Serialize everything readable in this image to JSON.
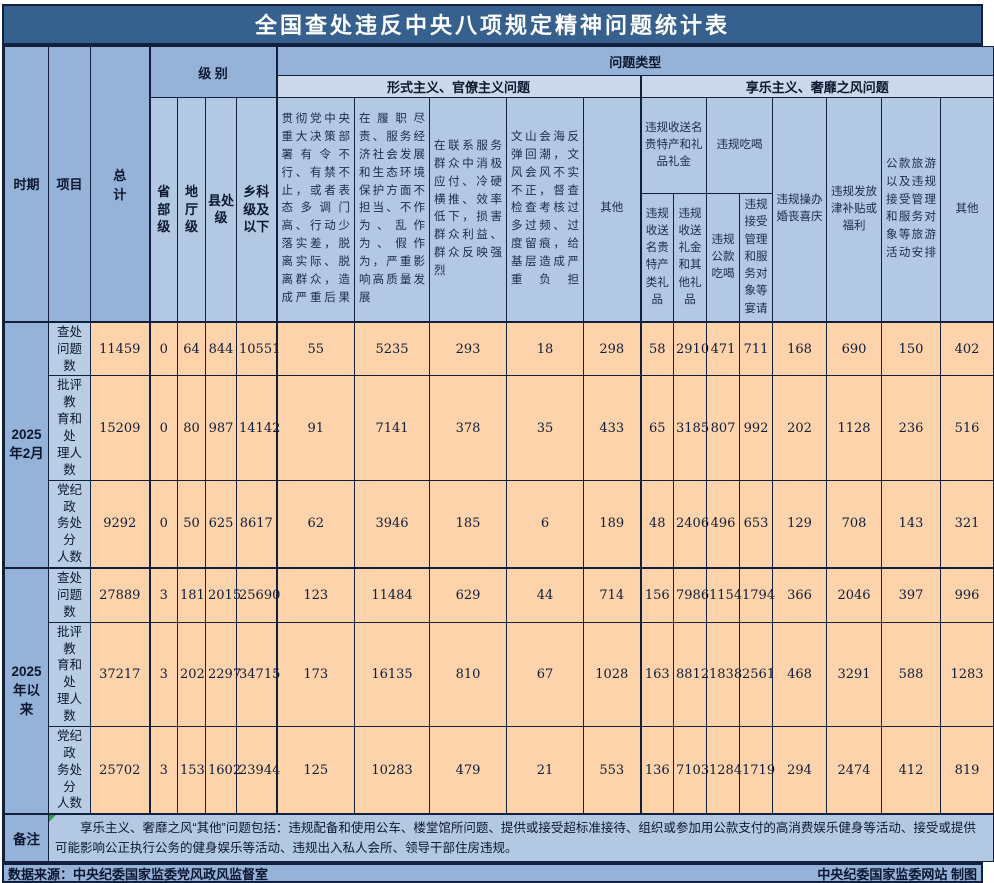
{
  "title": "全国查处违反中央八项规定精神问题统计表",
  "colors": {
    "title_bar": "#36618f",
    "header_blue": "#95b2d8",
    "subheader_blue": "#cbd8eb",
    "cell_blue": "#b3c8e3",
    "data_peach": "#fcd3aa",
    "line": "#121f3d",
    "marker_green": "#2e9e4f"
  },
  "header": {
    "period": "时期",
    "item": "项目",
    "total": "总\n计",
    "level": "级 别",
    "problem_type": "问题类型",
    "formalism_title": "形式主义、官僚主义问题",
    "hedonism_title": "享乐主义、奢靡之风问题",
    "levels": [
      "省部级",
      "地厅级",
      "县处级",
      "乡科级及以下"
    ],
    "formalism_cols": [
      "贯彻党中央重大决策部署有令不行、有禁不止，或者表态多调门高、行动少落实差，脱离实际、脱离群众，造成严重后果",
      "在履职尽责、服务经济社会发展和生态环境保护方面不担当、不作为、乱作为、假作为，严重影响高质量发展",
      "在联系服务群众中消极应付、冷硬横推、效率低下，损害群众利益、群众反映强烈",
      "文山会海反弹回潮，文风会风不实不正，督查检查考核过多过频、过度留痕，给基层造成严重负担",
      "其他"
    ],
    "hedonism_groups": [
      {
        "label": "违规收送名贵特产和礼品礼金",
        "children": [
          "违规收送名贵特产类礼品",
          "违规收送礼金和其他礼品"
        ]
      },
      {
        "label": "违规吃喝",
        "children": [
          "违规公款吃喝",
          "违规接受管理和服务对象等宴请"
        ]
      }
    ],
    "hedonism_cols": [
      "违规操办婚丧喜庆",
      "违规发放津补贴或福利",
      "公款旅游以及违规接受管理和服务对象等旅游活动安排",
      "其他"
    ]
  },
  "table": {
    "row_groups": [
      {
        "period": "2025\n年2月",
        "rows": [
          {
            "label": "查处\n问题数",
            "values": [
              11459,
              0,
              64,
              844,
              10551,
              55,
              5235,
              293,
              18,
              298,
              58,
              2910,
              471,
              711,
              168,
              690,
              150,
              402
            ]
          },
          {
            "label": "批评教\n育和处\n理人数",
            "values": [
              15209,
              0,
              80,
              987,
              14142,
              91,
              7141,
              378,
              35,
              433,
              65,
              3185,
              807,
              992,
              202,
              1128,
              236,
              516
            ]
          },
          {
            "label": "党纪政\n务处分\n人数",
            "values": [
              9292,
              0,
              50,
              625,
              8617,
              62,
              3946,
              185,
              6,
              189,
              48,
              2406,
              496,
              653,
              129,
              708,
              143,
              321
            ]
          }
        ]
      },
      {
        "period": "2025\n年以\n来",
        "rows": [
          {
            "label": "查处\n问题数",
            "values": [
              27889,
              3,
              181,
              2015,
              25690,
              123,
              11484,
              629,
              44,
              714,
              156,
              7986,
              1154,
              1794,
              366,
              2046,
              397,
              996
            ]
          },
          {
            "label": "批评教\n育和处\n理人数",
            "values": [
              37217,
              3,
              202,
              2297,
              34715,
              173,
              16135,
              810,
              67,
              1028,
              163,
              8812,
              1838,
              2561,
              468,
              3291,
              588,
              1283
            ]
          },
          {
            "label": "党纪政\n务处分\n人数",
            "values": [
              25702,
              3,
              153,
              1602,
              23944,
              125,
              10283,
              479,
              21,
              553,
              136,
              7103,
              1284,
              1719,
              294,
              2474,
              412,
              819
            ]
          }
        ]
      }
    ]
  },
  "remark": {
    "label": "备注",
    "text": "享乐主义、奢靡之风“其他”问题包括：违规配备和使用公车、楼堂馆所问题、提供或接受超标准接待、组织或参加用公款支付的高消费娱乐健身等活动、接受或提供可能影响公正执行公务的健身娱乐等活动、违规出入私人会所、领导干部住房违规。"
  },
  "footer": {
    "source": "数据来源：中央纪委国家监委党风政风监督室",
    "credit": "中央纪委国家监委网站 制图"
  }
}
